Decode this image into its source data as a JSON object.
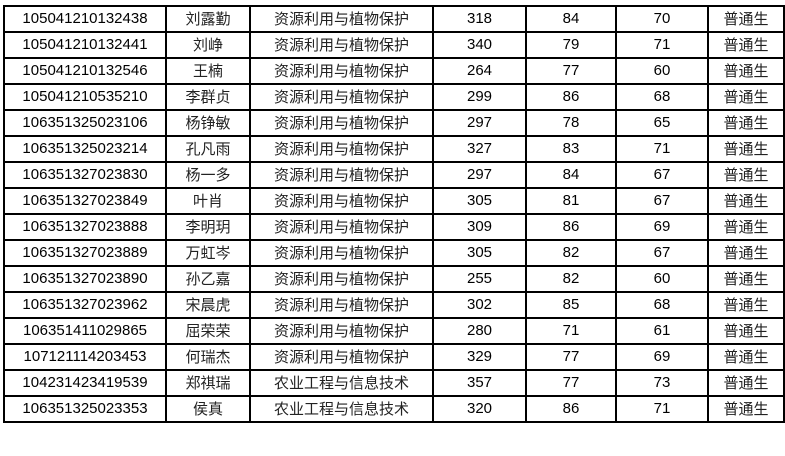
{
  "rows": [
    {
      "id": "105041210132438",
      "name": "刘露勤",
      "major": "资源利用与植物保护",
      "total": "318",
      "s1": "84",
      "s2": "70",
      "type": "普通生"
    },
    {
      "id": "105041210132441",
      "name": "刘峥",
      "major": "资源利用与植物保护",
      "total": "340",
      "s1": "79",
      "s2": "71",
      "type": "普通生"
    },
    {
      "id": "105041210132546",
      "name": "王楠",
      "major": "资源利用与植物保护",
      "total": "264",
      "s1": "77",
      "s2": "60",
      "type": "普通生"
    },
    {
      "id": "105041210535210",
      "name": "李群贞",
      "major": "资源利用与植物保护",
      "total": "299",
      "s1": "86",
      "s2": "68",
      "type": "普通生"
    },
    {
      "id": "106351325023106",
      "name": "杨铮敏",
      "major": "资源利用与植物保护",
      "total": "297",
      "s1": "78",
      "s2": "65",
      "type": "普通生"
    },
    {
      "id": "106351325023214",
      "name": "孔凡雨",
      "major": "资源利用与植物保护",
      "total": "327",
      "s1": "83",
      "s2": "71",
      "type": "普通生"
    },
    {
      "id": "106351327023830",
      "name": "杨一多",
      "major": "资源利用与植物保护",
      "total": "297",
      "s1": "84",
      "s2": "67",
      "type": "普通生"
    },
    {
      "id": "106351327023849",
      "name": "叶肖",
      "major": "资源利用与植物保护",
      "total": "305",
      "s1": "81",
      "s2": "67",
      "type": "普通生"
    },
    {
      "id": "106351327023888",
      "name": "李明玥",
      "major": "资源利用与植物保护",
      "total": "309",
      "s1": "86",
      "s2": "69",
      "type": "普通生"
    },
    {
      "id": "106351327023889",
      "name": "万虹岑",
      "major": "资源利用与植物保护",
      "total": "305",
      "s1": "82",
      "s2": "67",
      "type": "普通生"
    },
    {
      "id": "106351327023890",
      "name": "孙乙嘉",
      "major": "资源利用与植物保护",
      "total": "255",
      "s1": "82",
      "s2": "60",
      "type": "普通生"
    },
    {
      "id": "106351327023962",
      "name": "宋晨虎",
      "major": "资源利用与植物保护",
      "total": "302",
      "s1": "85",
      "s2": "68",
      "type": "普通生"
    },
    {
      "id": "106351411029865",
      "name": "屈荣荣",
      "major": "资源利用与植物保护",
      "total": "280",
      "s1": "71",
      "s2": "61",
      "type": "普通生"
    },
    {
      "id": "107121114203453",
      "name": "何瑞杰",
      "major": "资源利用与植物保护",
      "total": "329",
      "s1": "77",
      "s2": "69",
      "type": "普通生"
    },
    {
      "id": "104231423419539",
      "name": "郑祺瑞",
      "major": "农业工程与信息技术",
      "total": "357",
      "s1": "77",
      "s2": "73",
      "type": "普通生"
    },
    {
      "id": "106351325023353",
      "name": "侯真",
      "major": "农业工程与信息技术",
      "total": "320",
      "s1": "86",
      "s2": "71",
      "type": "普通生"
    }
  ]
}
